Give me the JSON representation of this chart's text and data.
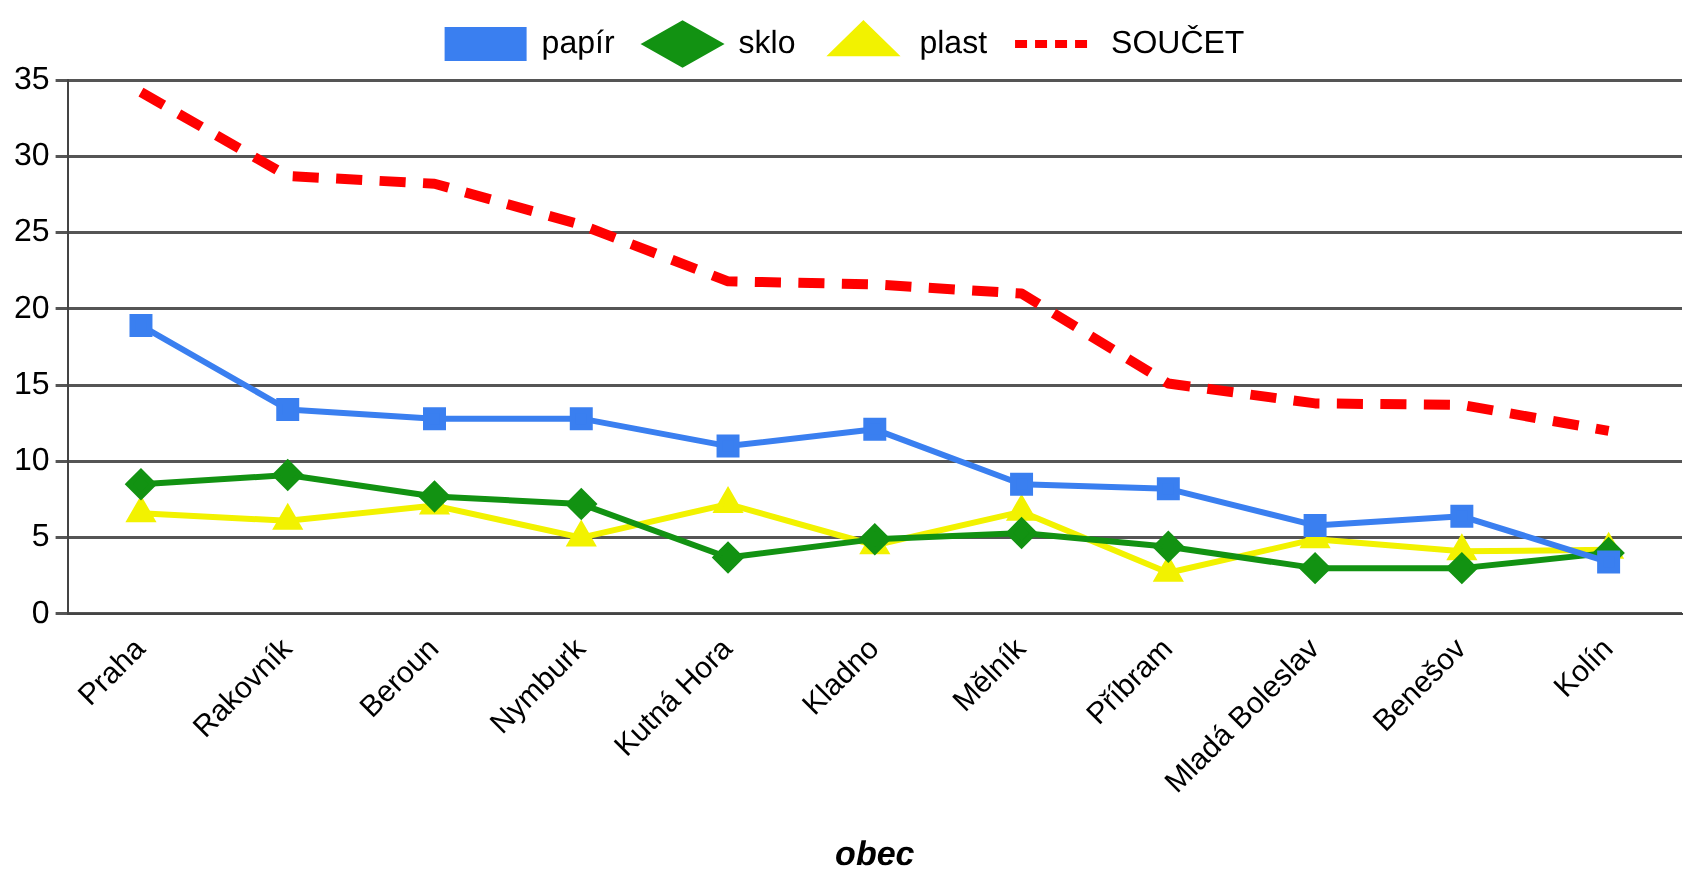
{
  "chart_data": {
    "type": "line",
    "xlabel": "obec",
    "categories": [
      "Praha",
      "Rakovník",
      "Beroun",
      "Nymburk",
      "Kutná Hora",
      "Kladno",
      "Mělník",
      "Příbram",
      "Mladá Boleslav",
      "Benešov",
      "Kolín"
    ],
    "series": [
      {
        "name": "papír",
        "color": "#3a7ff0",
        "marker": "square",
        "values": [
          18.9,
          13.4,
          12.8,
          12.8,
          11.0,
          12.1,
          8.5,
          8.2,
          5.8,
          6.4,
          3.4
        ]
      },
      {
        "name": "sklo",
        "color": "#129212",
        "marker": "diamond",
        "values": [
          8.5,
          9.1,
          7.7,
          7.2,
          3.7,
          4.9,
          5.3,
          4.4,
          3.0,
          3.0,
          4.0
        ]
      },
      {
        "name": "plast",
        "color": "#f2f200",
        "marker": "triangle",
        "values": [
          6.6,
          6.1,
          7.1,
          5.0,
          7.2,
          4.5,
          6.7,
          2.7,
          4.9,
          4.1,
          4.2
        ]
      },
      {
        "name": "SOUČET",
        "color": "#ff0000",
        "marker": "none",
        "line_style": "dashed",
        "values": [
          34.2,
          28.7,
          28.2,
          25.5,
          21.8,
          21.6,
          21.0,
          15.1,
          13.8,
          13.7,
          12.0
        ]
      }
    ],
    "ylim": [
      0,
      35
    ],
    "yticks": [
      0,
      5,
      10,
      15,
      20,
      25,
      30,
      35
    ],
    "grid": "y",
    "legend": "top"
  }
}
